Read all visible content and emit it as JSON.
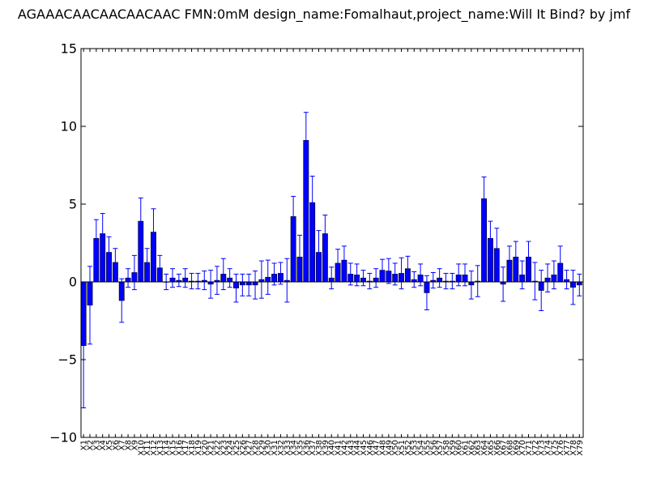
{
  "chart_data": {
    "type": "bar",
    "title": "AGAAACAACAACAACAAC  FMN:0mM  design_name:Fomalhaut,project_name:Will It Bind? by jmf",
    "xlabel": "",
    "ylabel": "",
    "ylim": [
      -10,
      15
    ],
    "yticks": [
      "−10",
      "−5",
      "0",
      "5",
      "10",
      "15"
    ],
    "ytick_values": [
      -10,
      -5,
      0,
      5,
      10,
      15
    ],
    "grid": false,
    "bar_color": "#0000ff",
    "error_color": "#0000ff",
    "categories": [
      "X1",
      "X2",
      "X3",
      "X4",
      "X5",
      "X6",
      "X7",
      "X8",
      "X9",
      "X10",
      "X11",
      "X12",
      "X13",
      "X14",
      "X15",
      "X16",
      "X17",
      "X18",
      "X19",
      "X20",
      "X21",
      "X22",
      "X23",
      "X24",
      "X25",
      "X26",
      "X27",
      "X28",
      "X29",
      "X30",
      "X31",
      "X32",
      "X33",
      "X34",
      "X35",
      "X36",
      "X37",
      "X38",
      "X39",
      "X40",
      "X41",
      "X42",
      "X43",
      "X44",
      "X45",
      "X46",
      "X47",
      "X48",
      "X49",
      "X50",
      "X51",
      "X52",
      "X53",
      "X54",
      "X55",
      "X56",
      "X57",
      "X58",
      "X59",
      "X60",
      "X61",
      "X62",
      "X63",
      "X64",
      "X65",
      "X66",
      "X67",
      "X68",
      "X69",
      "X70",
      "X71",
      "X72",
      "X73",
      "X74",
      "X75",
      "X76",
      "X77",
      "X78",
      "X79"
    ],
    "values": [
      -4.1,
      -1.5,
      2.8,
      3.1,
      1.9,
      1.25,
      -1.2,
      0.25,
      0.6,
      3.9,
      1.25,
      3.2,
      0.9,
      0.0,
      0.25,
      0.1,
      0.25,
      0.05,
      0.05,
      0.1,
      -0.15,
      0.1,
      0.5,
      0.25,
      -0.4,
      -0.2,
      -0.2,
      -0.2,
      0.15,
      0.3,
      0.5,
      0.55,
      0.1,
      4.2,
      1.6,
      9.1,
      5.1,
      1.9,
      3.1,
      0.25,
      1.2,
      1.4,
      0.5,
      0.45,
      0.25,
      0.05,
      0.25,
      0.75,
      0.7,
      0.5,
      0.55,
      0.85,
      0.15,
      0.45,
      -0.7,
      0.1,
      0.25,
      0.05,
      0.05,
      0.45,
      0.45,
      -0.2,
      0.05,
      5.35,
      2.8,
      2.15,
      -0.15,
      1.4,
      1.6,
      0.45,
      1.6,
      0.05,
      -0.55,
      0.25,
      0.45,
      1.2,
      0.15,
      -0.35,
      -0.2
    ],
    "errors": [
      4.0,
      2.5,
      1.2,
      1.3,
      1.0,
      0.9,
      1.4,
      0.6,
      1.1,
      1.5,
      0.9,
      1.5,
      0.8,
      0.5,
      0.6,
      0.4,
      0.6,
      0.5,
      0.5,
      0.6,
      0.9,
      0.9,
      1.0,
      0.6,
      0.9,
      0.7,
      0.7,
      0.9,
      1.2,
      1.1,
      0.7,
      0.7,
      1.4,
      1.3,
      1.4,
      1.8,
      1.7,
      1.4,
      1.2,
      0.7,
      0.9,
      0.9,
      0.7,
      0.7,
      0.5,
      0.5,
      0.6,
      0.7,
      0.8,
      0.7,
      1.0,
      0.8,
      0.5,
      0.7,
      1.1,
      0.5,
      0.6,
      0.5,
      0.5,
      0.7,
      0.7,
      0.9,
      1.0,
      1.4,
      1.1,
      1.3,
      1.1,
      0.9,
      1.0,
      0.9,
      1.0,
      1.2,
      1.3,
      0.9,
      0.9,
      1.1,
      0.6,
      1.1,
      0.7
    ]
  }
}
